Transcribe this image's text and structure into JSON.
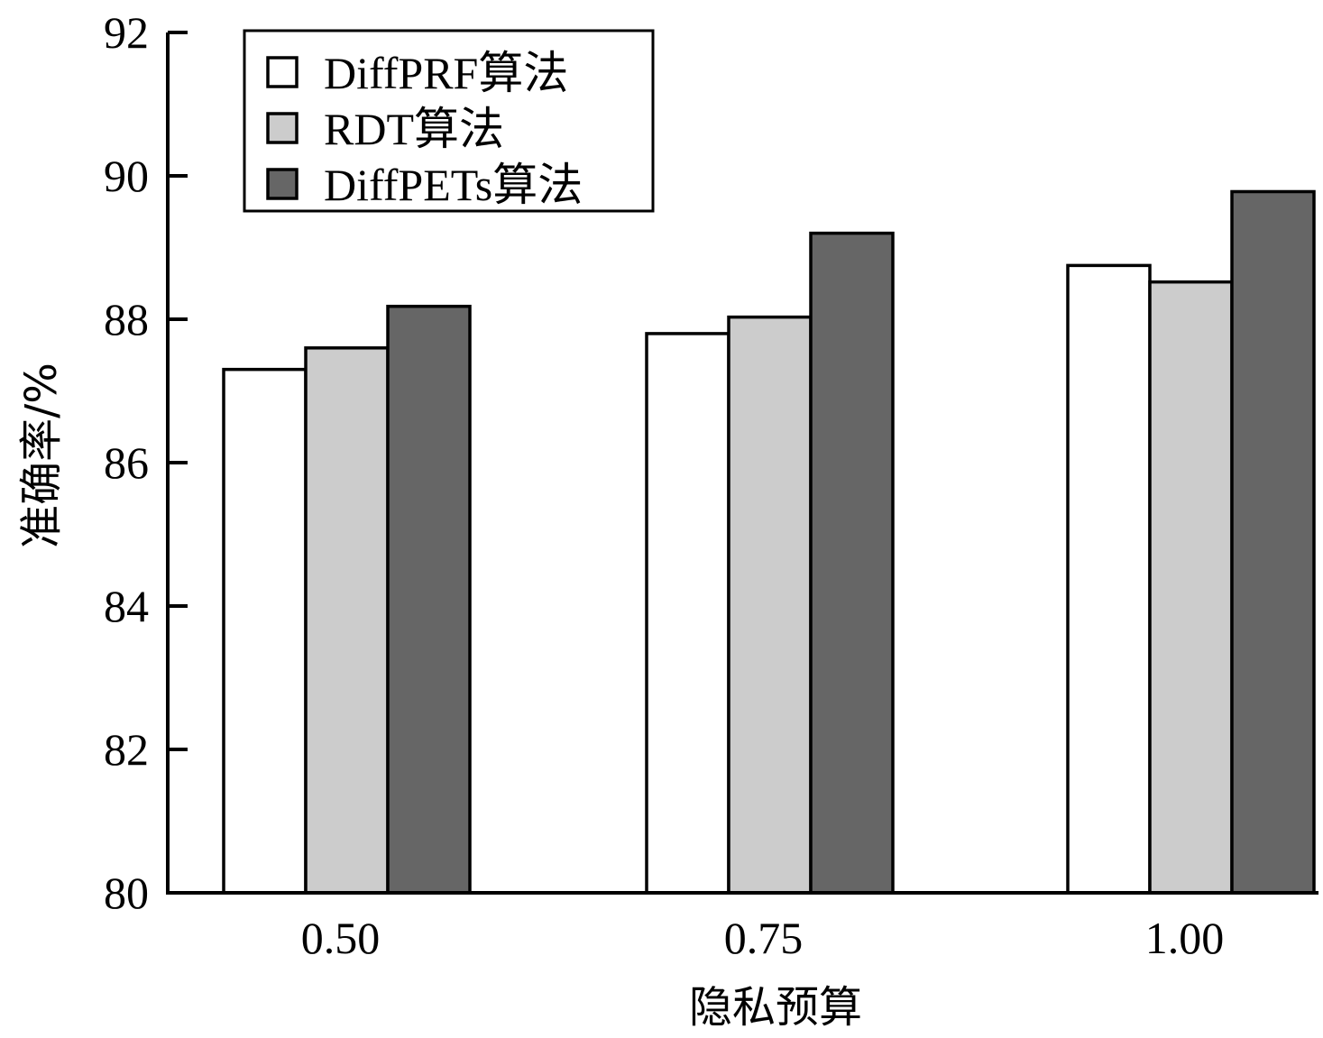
{
  "chart_data": {
    "type": "bar",
    "xlabel": "隐私预算",
    "ylabel": "准确率/%",
    "categories": [
      "0.50",
      "0.75",
      "1.00"
    ],
    "ylim": [
      80,
      92
    ],
    "yticks": [
      "80",
      "82",
      "84",
      "86",
      "88",
      "90",
      "92"
    ],
    "grid": false,
    "legend_position": "top-left",
    "series": [
      {
        "name": "DiffPRF算法",
        "values": [
          87.3,
          87.8,
          88.75
        ],
        "color": "#ffffff"
      },
      {
        "name": "RDT算法",
        "values": [
          87.6,
          88.03,
          88.52
        ],
        "color": "#cccccc"
      },
      {
        "name": "DiffPETs算法",
        "values": [
          88.18,
          89.2,
          89.78
        ],
        "color": "#666666"
      }
    ]
  }
}
